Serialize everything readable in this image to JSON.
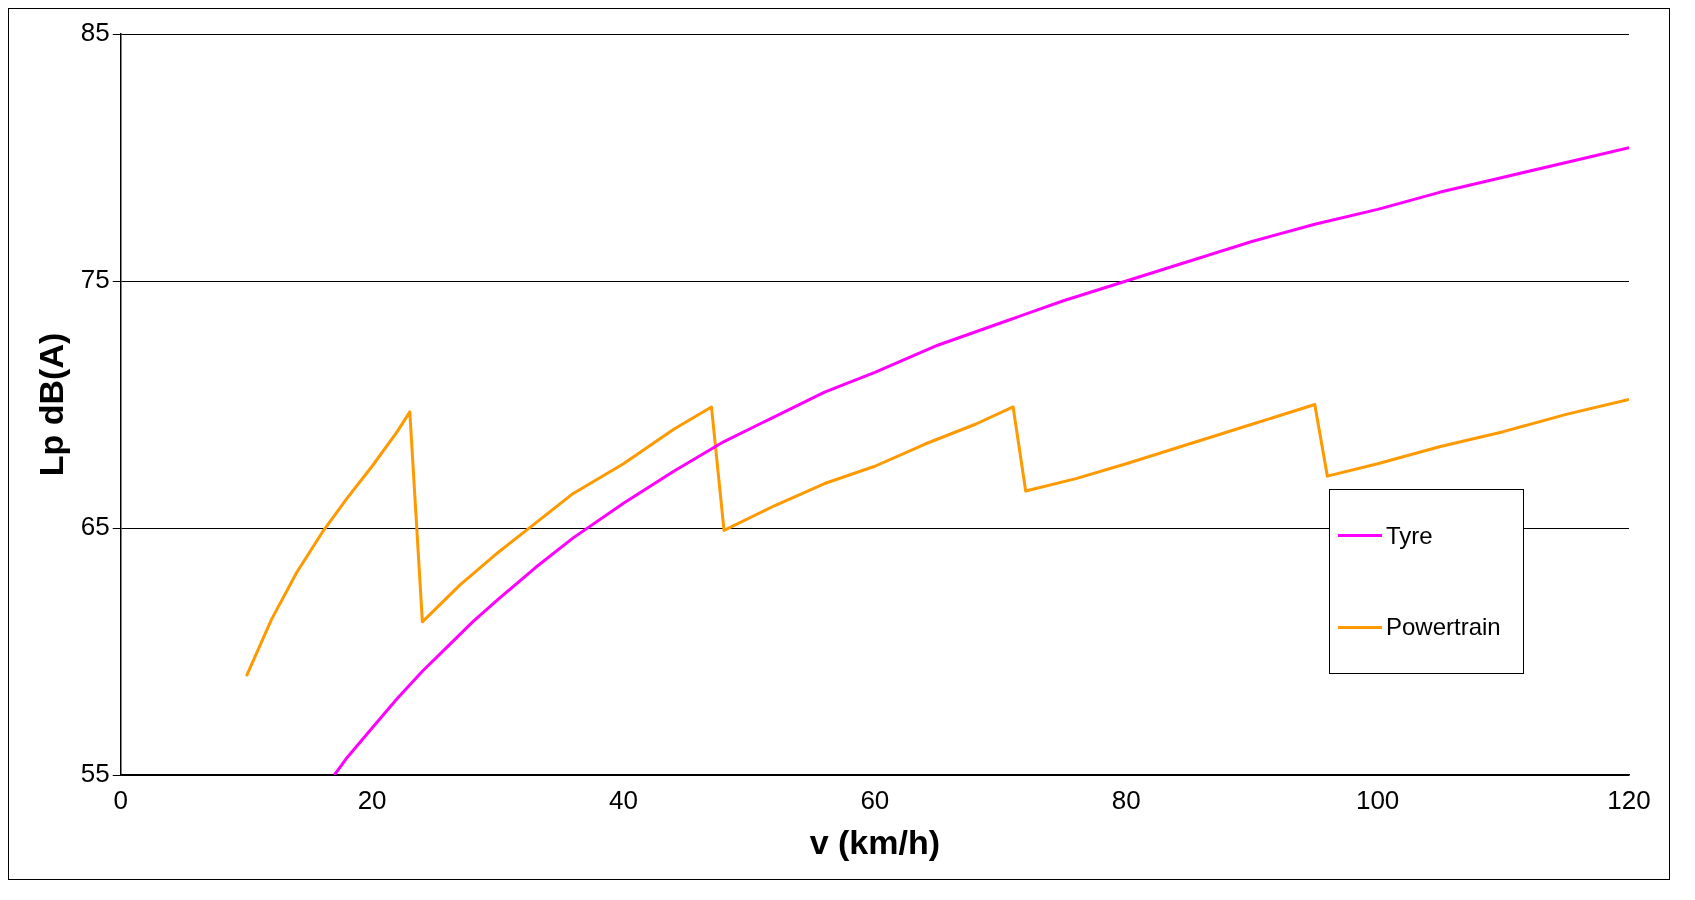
{
  "chart_data": {
    "type": "line",
    "xlabel": "v (km/h)",
    "ylabel": "Lp dB(A)",
    "xlim": [
      0,
      120
    ],
    "xticks": [
      0,
      20,
      40,
      60,
      80,
      100,
      120
    ],
    "ylim": [
      55,
      85
    ],
    "yticks": [
      55,
      65,
      75,
      85
    ],
    "grid": "y",
    "legend": "bottom right",
    "marker": "none",
    "line_style": "solid",
    "series": [
      {
        "name": "Tyre",
        "color": "#ff00ff",
        "x": [
          17,
          18,
          20,
          22,
          24,
          26,
          28,
          30,
          33,
          36,
          40,
          44,
          48,
          52,
          56,
          60,
          65,
          70,
          75,
          80,
          85,
          90,
          95,
          100,
          105,
          110,
          115,
          120
        ],
        "values": [
          55.0,
          55.7,
          56.9,
          58.1,
          59.2,
          60.2,
          61.2,
          62.1,
          63.4,
          64.6,
          66.0,
          67.3,
          68.5,
          69.5,
          70.5,
          71.3,
          72.4,
          73.3,
          74.2,
          75.0,
          75.8,
          76.6,
          77.3,
          77.9,
          78.6,
          79.2,
          79.8,
          80.4
        ]
      },
      {
        "name": "Powertrain",
        "color": "#ff9900",
        "x": [
          10,
          12,
          14,
          16,
          18,
          20,
          22,
          23,
          24,
          27,
          30,
          33,
          36,
          40,
          44,
          47,
          48,
          52,
          56,
          60,
          64,
          68,
          71,
          72,
          76,
          80,
          85,
          90,
          95,
          96,
          100,
          105,
          110,
          115,
          120
        ],
        "values": [
          59.0,
          61.3,
          63.2,
          64.8,
          66.2,
          67.5,
          68.9,
          69.7,
          61.2,
          62.7,
          64.0,
          65.2,
          66.4,
          67.6,
          69.0,
          69.9,
          64.9,
          65.9,
          66.8,
          67.5,
          68.4,
          69.2,
          69.9,
          66.5,
          67.0,
          67.6,
          68.4,
          69.2,
          70.0,
          67.1,
          67.6,
          68.3,
          68.9,
          69.6,
          70.2
        ]
      }
    ]
  }
}
